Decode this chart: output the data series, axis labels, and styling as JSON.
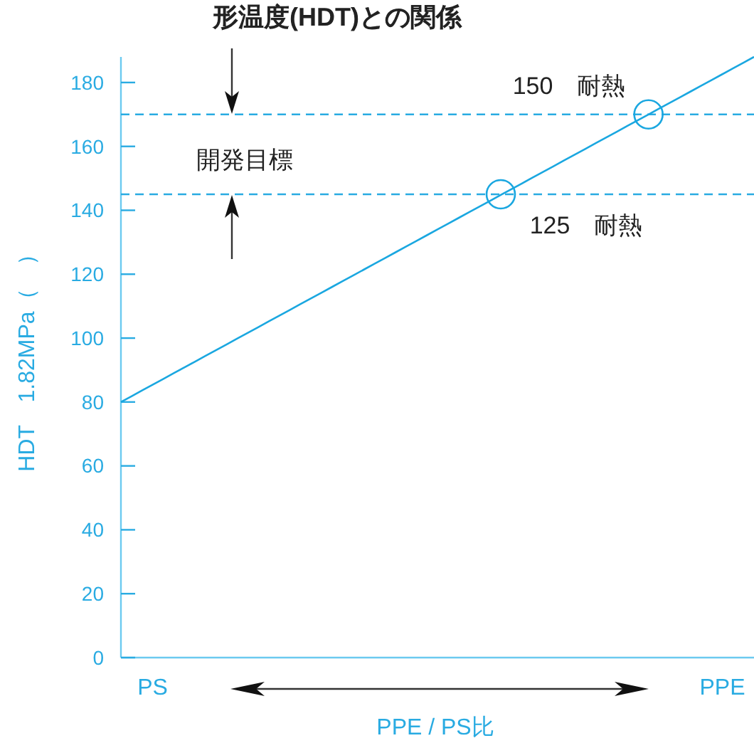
{
  "chart_data": {
    "type": "line",
    "title": "形温度(HDT)との関係",
    "xlabel": "PPE / PS比",
    "ylabel": "HDT　1.82MPa（　）",
    "categories": [
      null,
      null,
      null,
      "PS",
      null,
      null,
      null,
      null,
      null,
      null,
      null,
      null,
      null,
      null,
      null,
      null,
      null,
      null,
      null,
      null,
      null,
      null,
      null,
      null,
      null,
      null,
      null,
      null,
      null,
      null,
      null,
      null,
      null,
      null,
      null,
      null,
      null,
      null,
      null,
      null,
      null,
      null,
      null,
      null,
      null,
      null,
      null,
      null,
      null,
      null,
      null,
      null,
      null,
      null,
      null,
      null,
      null,
      "PPE",
      null,
      null,
      null
    ],
    "ylim": [
      0,
      188
    ],
    "yticks": [
      0,
      20,
      40,
      60,
      80,
      100,
      120,
      140,
      160,
      180
    ],
    "series": [
      {
        "color": "#1aa7e0",
        "values": [
          80,
          81.8,
          83.6,
          85.4,
          87.2,
          89,
          90.8,
          92.6,
          94.4,
          96.2,
          98,
          99.8,
          101.6,
          103.4,
          105.2,
          107,
          108.8,
          110.6,
          112.4,
          114.2,
          116,
          117.8,
          119.6,
          121.4,
          123.2,
          125,
          126.8,
          128.6,
          130.4,
          132.2,
          134,
          135.8,
          137.6,
          139.4,
          141.2,
          143,
          144.8,
          146.6,
          148.4,
          150.2,
          152,
          153.8,
          155.6,
          157.4,
          159.2,
          161,
          162.8,
          164.6,
          166.4,
          168.2,
          170,
          171.8,
          173.6,
          175.4,
          177.2,
          179,
          180.8,
          182.6,
          184.4,
          186.2,
          188
        ]
      },
      {
        "type": "scatter",
        "marker": "circle",
        "color": "#1aa7e0",
        "values": [
          null,
          null,
          null,
          null,
          null,
          null,
          null,
          null,
          null,
          null,
          null,
          null,
          null,
          null,
          null,
          null,
          null,
          null,
          null,
          null,
          null,
          null,
          null,
          null,
          null,
          null,
          null,
          null,
          null,
          null,
          null,
          null,
          null,
          null,
          null,
          null,
          145,
          null,
          null,
          null,
          null,
          null,
          null,
          null,
          null,
          null,
          null,
          null,
          null,
          null,
          170,
          null,
          null,
          null,
          null,
          null,
          null,
          null,
          null,
          null,
          null
        ]
      }
    ],
    "ref_lines": [
      {
        "axis": "y",
        "value": 170,
        "color": "#29abe2",
        "line_style": "dashed"
      },
      {
        "axis": "y",
        "value": 145,
        "color": "#29abe2",
        "line_style": "dashed"
      }
    ],
    "annotations": [
      "150　耐熱",
      "125　耐熱",
      "開発目標"
    ]
  }
}
